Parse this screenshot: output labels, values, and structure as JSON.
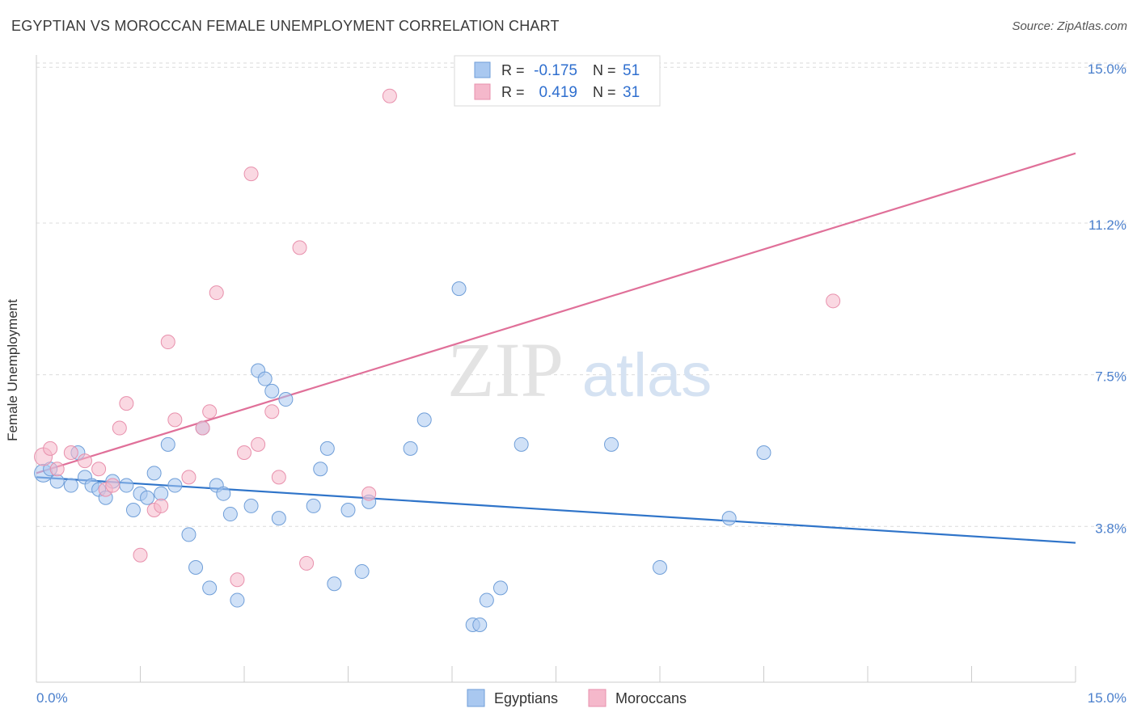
{
  "header": {
    "title": "EGYPTIAN VS MOROCCAN FEMALE UNEMPLOYMENT CORRELATION CHART",
    "source": "Source: ZipAtlas.com"
  },
  "watermark": {
    "zip": "ZIP",
    "atlas": "atlas"
  },
  "legend_box": {
    "rows": [
      {
        "r_label": "R =",
        "r_value": "-0.175",
        "n_label": "N =",
        "n_value": "51",
        "color": "#a9c8f0"
      },
      {
        "r_label": "R =",
        "r_value": "0.419",
        "n_label": "N =",
        "n_value": "31",
        "color": "#f5b8cb"
      }
    ]
  },
  "chart_data": {
    "type": "scatter",
    "title": "EGYPTIAN VS MOROCCAN FEMALE UNEMPLOYMENT CORRELATION CHART",
    "xlabel": "",
    "ylabel": "Female Unemployment",
    "xlim": [
      0,
      15
    ],
    "ylim": [
      0,
      15.3
    ],
    "x_tick_labels": [
      "0.0%",
      "15.0%"
    ],
    "y_ticks": [
      3.8,
      7.5,
      11.2,
      15.0
    ],
    "y_tick_labels": [
      "3.8%",
      "7.5%",
      "11.2%",
      "15.0%"
    ],
    "grid": true,
    "legend_position": "bottom-center",
    "series": [
      {
        "name": "Egyptians",
        "color": "#a9c8f0",
        "stroke": "#6f9ed8",
        "trend_color": "#2f74c9",
        "trend": {
          "x": [
            0,
            15
          ],
          "y": [
            5.0,
            3.4
          ]
        },
        "points": [
          [
            0.1,
            5.1
          ],
          [
            0.2,
            5.2
          ],
          [
            0.3,
            4.9
          ],
          [
            0.5,
            4.8
          ],
          [
            0.6,
            5.6
          ],
          [
            0.7,
            5.0
          ],
          [
            0.8,
            4.8
          ],
          [
            0.9,
            4.7
          ],
          [
            1.0,
            4.5
          ],
          [
            1.1,
            4.9
          ],
          [
            1.3,
            4.8
          ],
          [
            1.4,
            4.2
          ],
          [
            1.5,
            4.6
          ],
          [
            1.6,
            4.5
          ],
          [
            1.7,
            5.1
          ],
          [
            1.8,
            4.6
          ],
          [
            1.9,
            5.8
          ],
          [
            2.0,
            4.8
          ],
          [
            2.2,
            3.6
          ],
          [
            2.3,
            2.8
          ],
          [
            2.4,
            6.2
          ],
          [
            2.5,
            2.3
          ],
          [
            2.6,
            4.8
          ],
          [
            2.7,
            4.6
          ],
          [
            2.8,
            4.1
          ],
          [
            2.9,
            2.0
          ],
          [
            3.1,
            4.3
          ],
          [
            3.2,
            7.6
          ],
          [
            3.3,
            7.4
          ],
          [
            3.4,
            7.1
          ],
          [
            3.5,
            4.0
          ],
          [
            3.6,
            6.9
          ],
          [
            4.0,
            4.3
          ],
          [
            4.1,
            5.2
          ],
          [
            4.2,
            5.7
          ],
          [
            4.3,
            2.4
          ],
          [
            4.5,
            4.2
          ],
          [
            4.7,
            2.7
          ],
          [
            4.8,
            4.4
          ],
          [
            5.4,
            5.7
          ],
          [
            5.6,
            6.4
          ],
          [
            6.1,
            9.6
          ],
          [
            6.3,
            1.4
          ],
          [
            6.4,
            1.4
          ],
          [
            6.5,
            2.0
          ],
          [
            6.7,
            2.3
          ],
          [
            7.0,
            5.8
          ],
          [
            8.3,
            5.8
          ],
          [
            9.0,
            2.8
          ],
          [
            10.0,
            4.0
          ],
          [
            10.5,
            5.6
          ]
        ]
      },
      {
        "name": "Moroccans",
        "color": "#f5b8cb",
        "stroke": "#e890ac",
        "trend_color": "#e07099",
        "trend": {
          "x": [
            0,
            15
          ],
          "y": [
            5.1,
            12.9
          ]
        },
        "points": [
          [
            0.1,
            5.5
          ],
          [
            0.2,
            5.7
          ],
          [
            0.3,
            5.2
          ],
          [
            0.5,
            5.6
          ],
          [
            0.7,
            5.4
          ],
          [
            0.9,
            5.2
          ],
          [
            1.0,
            4.7
          ],
          [
            1.1,
            4.8
          ],
          [
            1.2,
            6.2
          ],
          [
            1.3,
            6.8
          ],
          [
            1.5,
            3.1
          ],
          [
            1.7,
            4.2
          ],
          [
            1.8,
            4.3
          ],
          [
            1.9,
            8.3
          ],
          [
            2.0,
            6.4
          ],
          [
            2.2,
            5.0
          ],
          [
            2.4,
            6.2
          ],
          [
            2.5,
            6.6
          ],
          [
            2.6,
            9.5
          ],
          [
            2.9,
            2.5
          ],
          [
            3.0,
            5.6
          ],
          [
            3.1,
            12.4
          ],
          [
            3.2,
            5.8
          ],
          [
            3.4,
            6.6
          ],
          [
            3.5,
            5.0
          ],
          [
            3.8,
            10.6
          ],
          [
            3.9,
            2.9
          ],
          [
            4.8,
            4.6
          ],
          [
            5.1,
            14.3
          ],
          [
            7.5,
            14.3
          ],
          [
            11.5,
            9.3
          ]
        ]
      }
    ]
  }
}
